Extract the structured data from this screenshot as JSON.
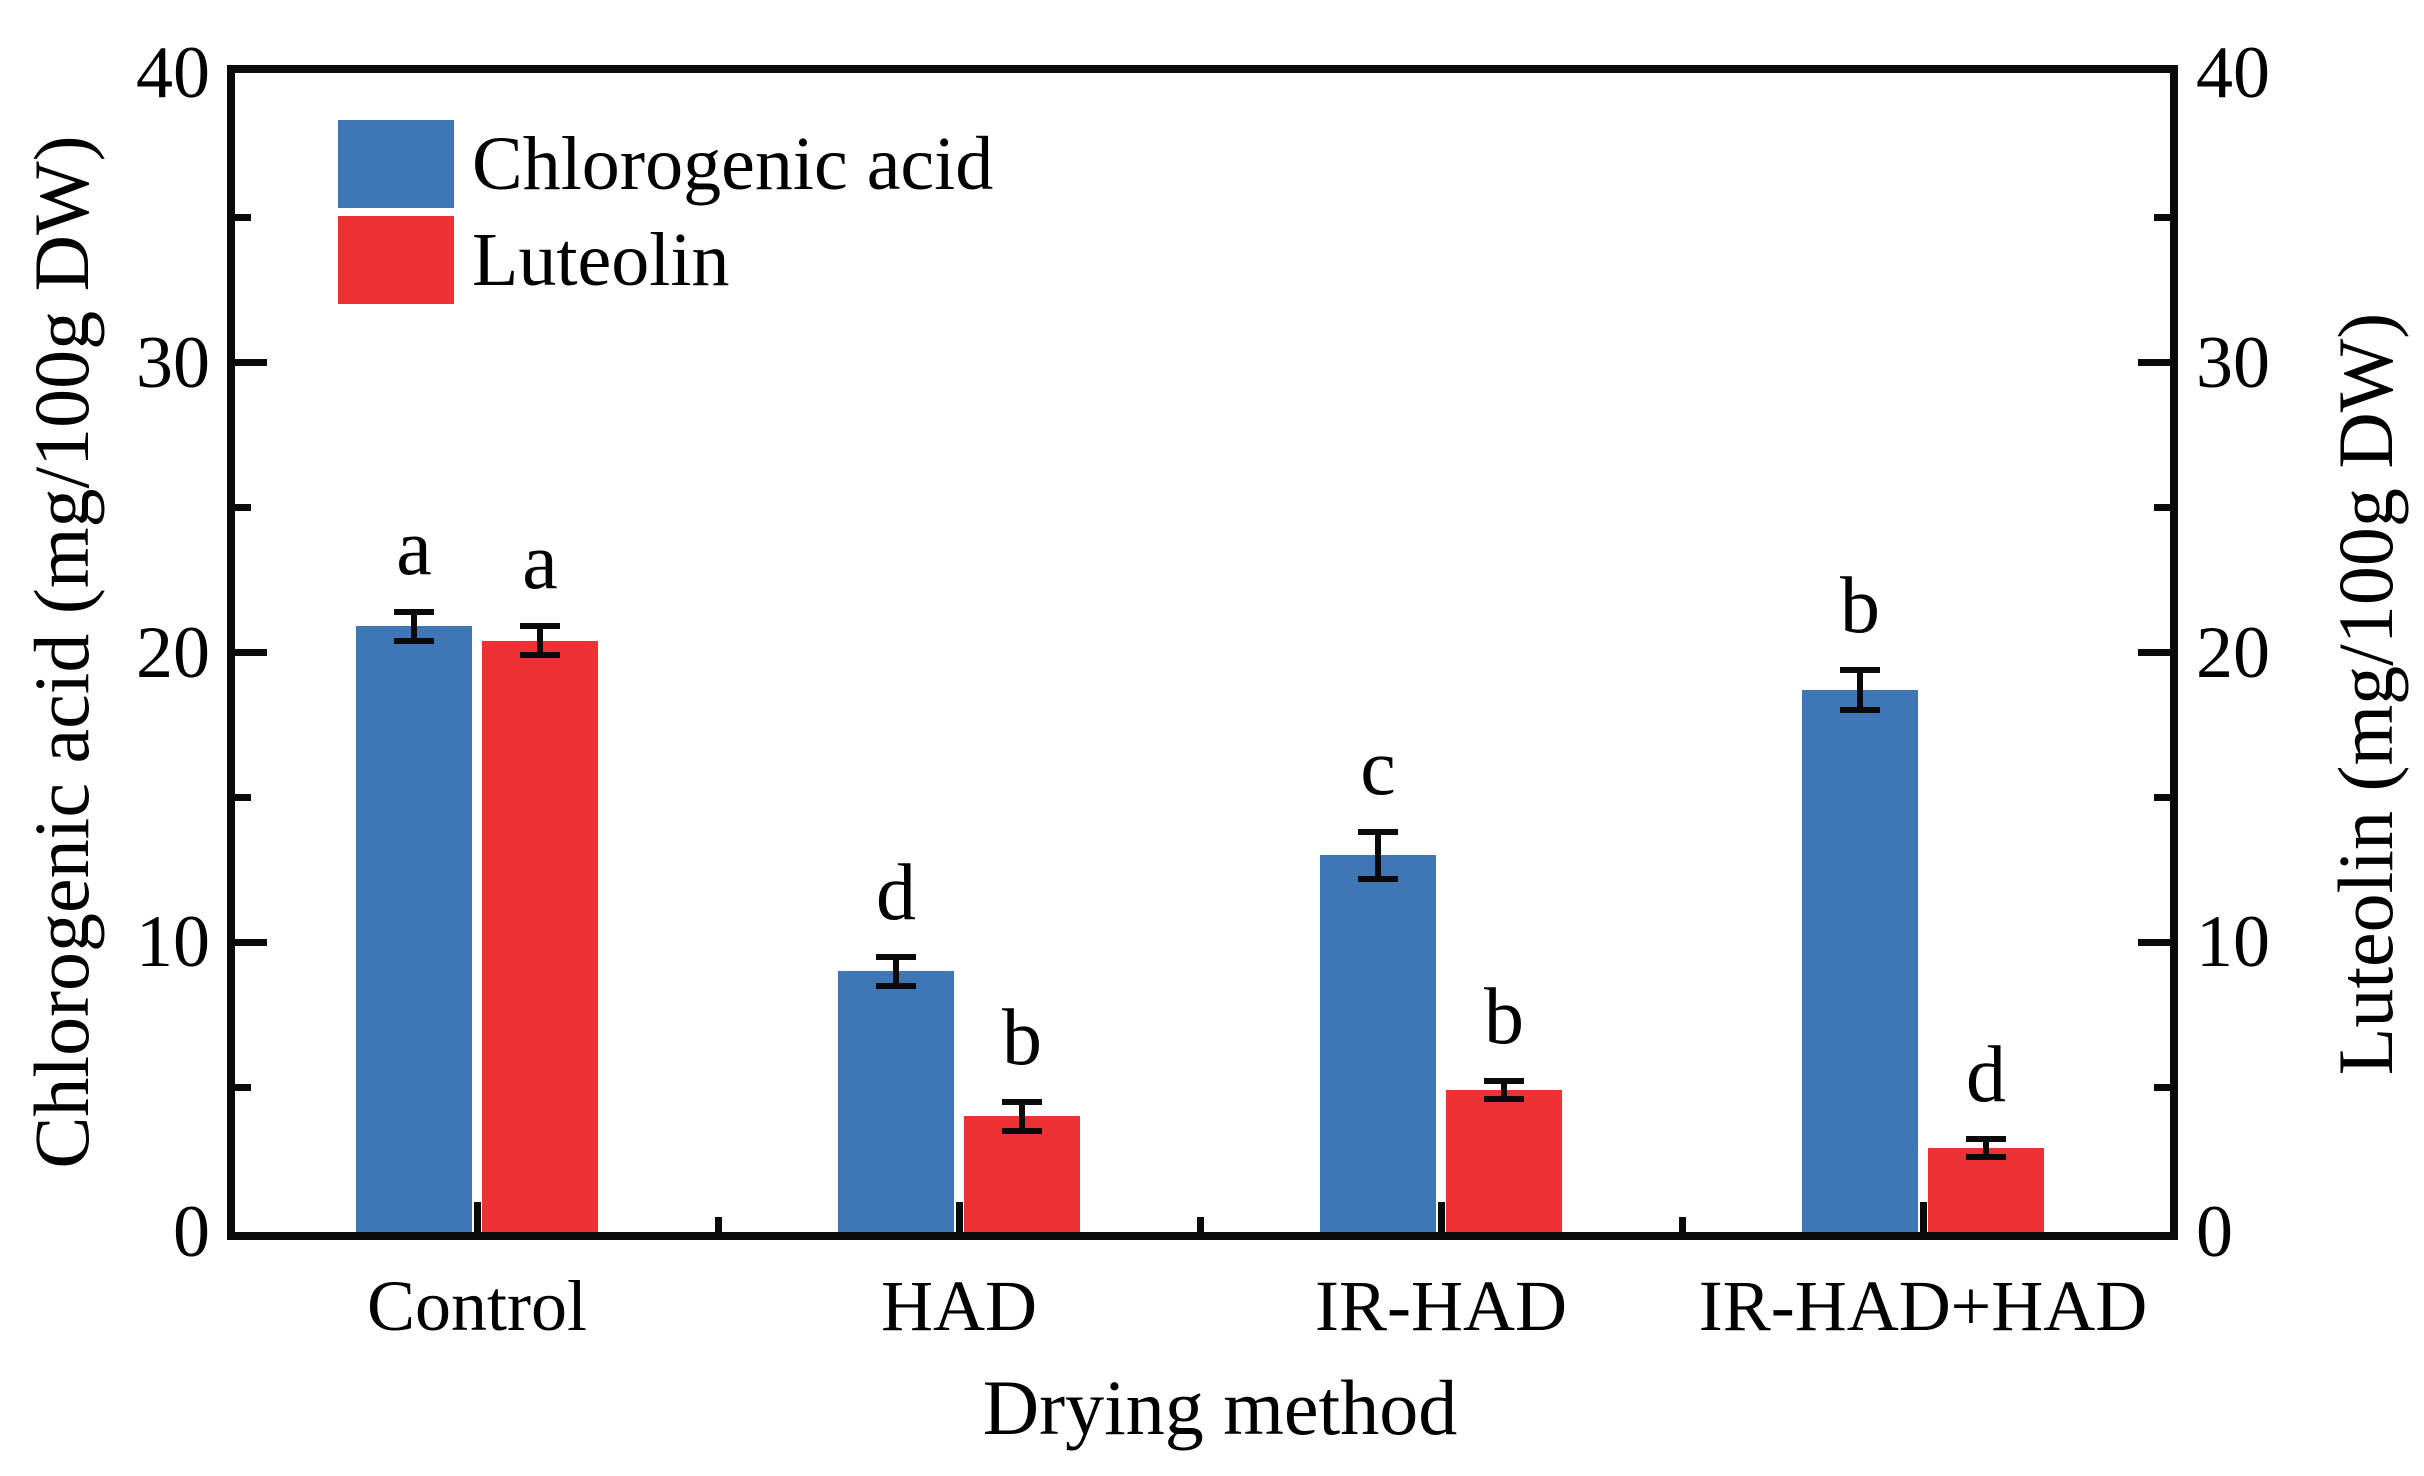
{
  "chart_data": {
    "type": "bar",
    "title": "",
    "xlabel": "Drying method",
    "ylabel_left": "Chlorogenic acid (mg/100g DW)",
    "ylabel_right": "Luteolin (mg/100g DW)",
    "categories": [
      "Control",
      "HAD",
      "IR-HAD",
      "IR-HAD+HAD"
    ],
    "ylim": [
      0,
      40
    ],
    "y_major_ticks": [
      0,
      10,
      20,
      30,
      40
    ],
    "y_minor_ticks": [
      5,
      15,
      25,
      35
    ],
    "grid": false,
    "legend_position": "top-left",
    "axis_color": "#0a0a0a",
    "series": [
      {
        "name": "Chlorogenic acid",
        "color": "#3F76B6",
        "values": [
          20.9,
          9.0,
          13.0,
          18.7
        ],
        "errors": [
          0.5,
          0.5,
          0.8,
          0.7
        ],
        "sig_letters": [
          "a",
          "d",
          "c",
          "b"
        ]
      },
      {
        "name": "Luteolin",
        "color": "#EE3134",
        "values": [
          20.4,
          4.0,
          4.9,
          2.9
        ],
        "errors": [
          0.5,
          0.5,
          0.3,
          0.3
        ],
        "sig_letters": [
          "a",
          "b",
          "b",
          "d"
        ]
      }
    ]
  }
}
